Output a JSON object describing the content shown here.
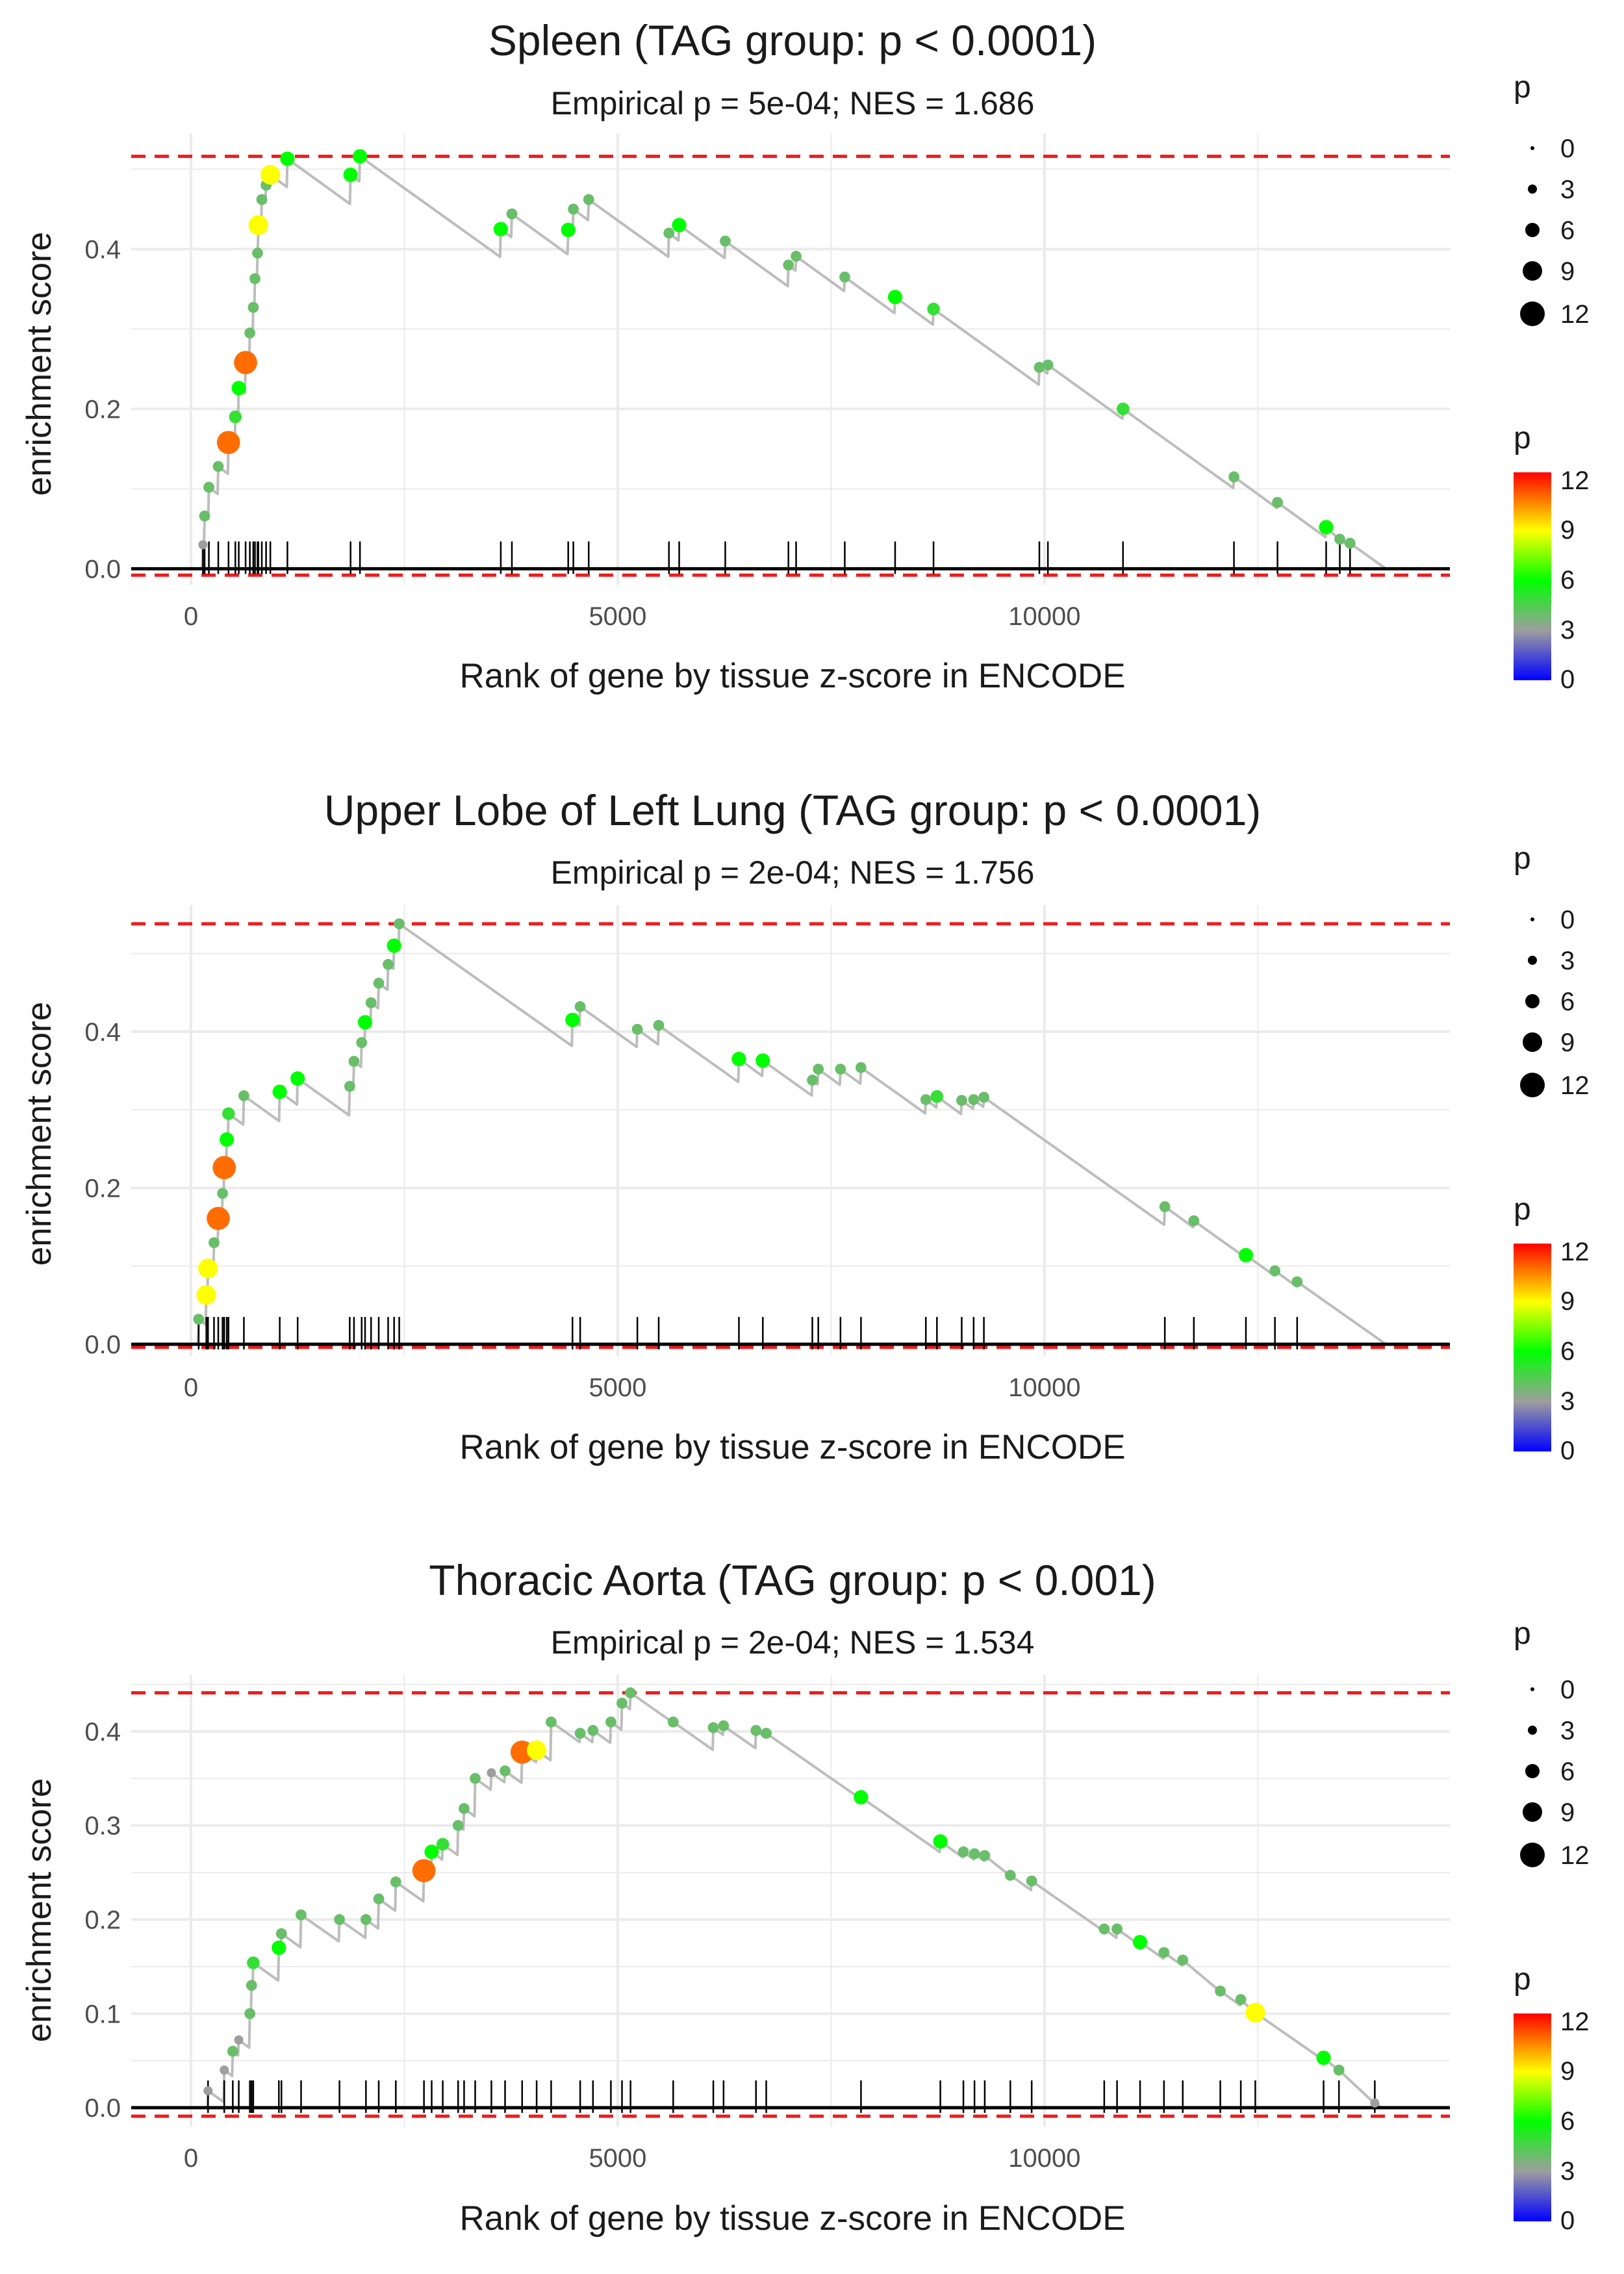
{
  "figure": {
    "colors": {
      "dashed": "#ee1c1c",
      "running_line": "#bdbdbd",
      "grid": "#ebebeb",
      "gradient": [
        "#0000ff",
        "#9e9e9e",
        "#00ff00",
        "#ffff00",
        "#ff0000"
      ]
    }
  },
  "chart_data": [
    {
      "type": "line",
      "title": "Spleen (TAG group: p < 0.0001)",
      "subtitle": "Empirical p = 5e-04; NES = 1.686",
      "xlabel": "Rank of gene by tissue z-score in ENCODE",
      "ylabel": "enrichment score",
      "xlim": [
        -700,
        14750
      ],
      "ylim": [
        -0.02,
        0.545
      ],
      "x_ticks": [
        0,
        5000,
        10000
      ],
      "y_ticks": [
        0.0,
        0.2,
        0.4
      ],
      "max_es": 0.516,
      "min_es": -0.008,
      "x_end": 14000,
      "points": [
        [
          140,
          0.03,
          3
        ],
        [
          160,
          0.066,
          4
        ],
        [
          210,
          0.102,
          4
        ],
        [
          320,
          0.128,
          4
        ],
        [
          440,
          0.158,
          11
        ],
        [
          520,
          0.19,
          5
        ],
        [
          560,
          0.226,
          6
        ],
        [
          640,
          0.258,
          11
        ],
        [
          690,
          0.295,
          4
        ],
        [
          730,
          0.327,
          4
        ],
        [
          750,
          0.363,
          4
        ],
        [
          780,
          0.395,
          4
        ],
        [
          790,
          0.43,
          9
        ],
        [
          830,
          0.462,
          4
        ],
        [
          880,
          0.48,
          4
        ],
        [
          930,
          0.493,
          9
        ],
        [
          1130,
          0.513,
          6
        ],
        [
          1870,
          0.493,
          6
        ],
        [
          1980,
          0.516,
          6
        ],
        [
          3630,
          0.425,
          6
        ],
        [
          3760,
          0.444,
          4
        ],
        [
          4420,
          0.424,
          6
        ],
        [
          4480,
          0.45,
          4
        ],
        [
          4660,
          0.462,
          4
        ],
        [
          5600,
          0.42,
          4
        ],
        [
          5720,
          0.43,
          6
        ],
        [
          6260,
          0.41,
          4
        ],
        [
          7000,
          0.38,
          4
        ],
        [
          7090,
          0.391,
          4
        ],
        [
          7660,
          0.365,
          4
        ],
        [
          8250,
          0.34,
          6
        ],
        [
          8700,
          0.325,
          5
        ],
        [
          9940,
          0.252,
          4
        ],
        [
          10040,
          0.255,
          4
        ],
        [
          10920,
          0.2,
          5
        ],
        [
          12220,
          0.115,
          4
        ],
        [
          12730,
          0.083,
          4
        ],
        [
          13300,
          0.052,
          6
        ],
        [
          13460,
          0.037,
          4
        ],
        [
          13580,
          0.032,
          4
        ]
      ]
    },
    {
      "type": "line",
      "title": "Upper Lobe of Left Lung (TAG group: p < 0.0001)",
      "subtitle": "Empirical p = 2e-04; NES = 1.756",
      "xlabel": "Rank of gene by tissue z-score in ENCODE",
      "ylabel": "enrichment score",
      "xlim": [
        -700,
        14750
      ],
      "ylim": [
        -0.015,
        0.562
      ],
      "x_ticks": [
        0,
        5000,
        10000
      ],
      "y_ticks": [
        0.0,
        0.2,
        0.4
      ],
      "max_es": 0.538,
      "min_es": -0.004,
      "x_end": 14000,
      "points": [
        [
          90,
          0.032,
          4
        ],
        [
          180,
          0.063,
          9
        ],
        [
          200,
          0.097,
          9
        ],
        [
          270,
          0.13,
          4
        ],
        [
          320,
          0.161,
          11
        ],
        [
          370,
          0.193,
          4
        ],
        [
          390,
          0.226,
          11
        ],
        [
          420,
          0.262,
          6
        ],
        [
          440,
          0.295,
          5
        ],
        [
          620,
          0.318,
          4
        ],
        [
          1040,
          0.323,
          6
        ],
        [
          1250,
          0.34,
          6
        ],
        [
          1860,
          0.33,
          4
        ],
        [
          1910,
          0.362,
          4
        ],
        [
          2000,
          0.386,
          4
        ],
        [
          2040,
          0.412,
          6
        ],
        [
          2110,
          0.437,
          4
        ],
        [
          2200,
          0.462,
          4
        ],
        [
          2310,
          0.486,
          4
        ],
        [
          2380,
          0.51,
          6
        ],
        [
          2440,
          0.538,
          4
        ],
        [
          4470,
          0.415,
          6
        ],
        [
          4560,
          0.432,
          4
        ],
        [
          5230,
          0.403,
          4
        ],
        [
          5480,
          0.408,
          4
        ],
        [
          6420,
          0.365,
          6
        ],
        [
          6700,
          0.363,
          6
        ],
        [
          7280,
          0.338,
          4
        ],
        [
          7350,
          0.352,
          4
        ],
        [
          7610,
          0.352,
          4
        ],
        [
          7850,
          0.354,
          4
        ],
        [
          8610,
          0.313,
          4
        ],
        [
          8740,
          0.317,
          5
        ],
        [
          9030,
          0.312,
          4
        ],
        [
          9170,
          0.313,
          4
        ],
        [
          9290,
          0.316,
          4
        ],
        [
          11410,
          0.176,
          4
        ],
        [
          11750,
          0.158,
          4
        ],
        [
          12360,
          0.114,
          6
        ],
        [
          12700,
          0.094,
          4
        ],
        [
          12960,
          0.08,
          4
        ]
      ]
    },
    {
      "type": "line",
      "title": "Thoracic Aorta (TAG group: p < 0.001)",
      "subtitle": "Empirical p = 2e-04; NES = 1.534",
      "xlabel": "Rank of gene by tissue z-score in ENCODE",
      "ylabel": "enrichment score",
      "xlim": [
        -700,
        14750
      ],
      "ylim": [
        -0.02,
        0.46
      ],
      "x_ticks": [
        0,
        5000,
        10000
      ],
      "y_ticks": [
        0.0,
        0.1,
        0.2,
        0.3,
        0.4
      ],
      "max_es": 0.441,
      "min_es": -0.009,
      "x_end": 13950,
      "points": [
        [
          200,
          0.018,
          3
        ],
        [
          390,
          0.04,
          3
        ],
        [
          490,
          0.06,
          4
        ],
        [
          560,
          0.072,
          3
        ],
        [
          690,
          0.1,
          4
        ],
        [
          710,
          0.13,
          4
        ],
        [
          730,
          0.154,
          5
        ],
        [
          1030,
          0.17,
          6
        ],
        [
          1060,
          0.185,
          4
        ],
        [
          1290,
          0.205,
          4
        ],
        [
          1740,
          0.2,
          4
        ],
        [
          2050,
          0.2,
          4
        ],
        [
          2200,
          0.222,
          4
        ],
        [
          2400,
          0.24,
          4
        ],
        [
          2730,
          0.252,
          11
        ],
        [
          2820,
          0.272,
          6
        ],
        [
          2950,
          0.28,
          5
        ],
        [
          3130,
          0.3,
          4
        ],
        [
          3200,
          0.318,
          4
        ],
        [
          3330,
          0.35,
          4
        ],
        [
          3520,
          0.356,
          3
        ],
        [
          3680,
          0.358,
          4
        ],
        [
          3880,
          0.378,
          11
        ],
        [
          4050,
          0.38,
          9
        ],
        [
          4220,
          0.41,
          4
        ],
        [
          4560,
          0.398,
          4
        ],
        [
          4710,
          0.401,
          4
        ],
        [
          4920,
          0.41,
          4
        ],
        [
          5050,
          0.43,
          4
        ],
        [
          5150,
          0.441,
          4
        ],
        [
          5650,
          0.41,
          4
        ],
        [
          6120,
          0.404,
          4
        ],
        [
          6240,
          0.406,
          4
        ],
        [
          6620,
          0.401,
          4
        ],
        [
          6740,
          0.398,
          4
        ],
        [
          7850,
          0.33,
          6
        ],
        [
          8780,
          0.283,
          6
        ],
        [
          9050,
          0.272,
          4
        ],
        [
          9180,
          0.27,
          4
        ],
        [
          9300,
          0.268,
          4
        ],
        [
          9600,
          0.247,
          4
        ],
        [
          9850,
          0.241,
          4
        ],
        [
          10700,
          0.19,
          4
        ],
        [
          10850,
          0.19,
          4
        ],
        [
          11120,
          0.176,
          6
        ],
        [
          11400,
          0.165,
          4
        ],
        [
          11620,
          0.157,
          4
        ],
        [
          12060,
          0.124,
          4
        ],
        [
          12300,
          0.115,
          4
        ],
        [
          12470,
          0.101,
          9
        ],
        [
          13270,
          0.053,
          6
        ],
        [
          13450,
          0.04,
          4
        ],
        [
          13870,
          0.005,
          3
        ]
      ]
    }
  ],
  "legend": {
    "size_title": "p",
    "size_labels": [
      "0",
      "3",
      "6",
      "9",
      "12"
    ],
    "size_values": [
      0,
      3,
      6,
      9,
      12
    ],
    "color_title": "p",
    "color_labels": [
      "12",
      "9",
      "6",
      "3",
      "0"
    ],
    "color_values": [
      12,
      9,
      6,
      3,
      0
    ],
    "color_range": [
      0,
      12.5
    ]
  }
}
